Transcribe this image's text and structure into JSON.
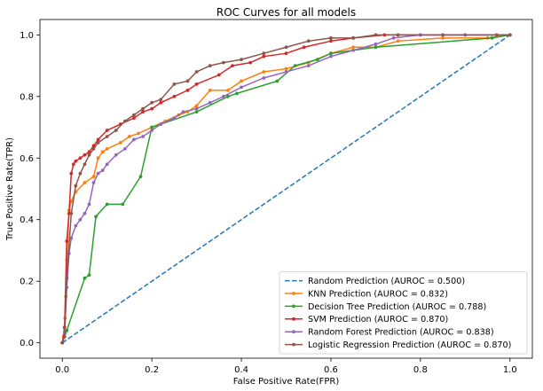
{
  "chart_data": {
    "type": "line",
    "title": "ROC Curves for all models",
    "xlabel": "False Positive Rate(FPR)",
    "ylabel": "True Positive Rate(TPR)",
    "xlim": [
      -0.05,
      1.05
    ],
    "ylim": [
      -0.05,
      1.05
    ],
    "xticks": [
      0.0,
      0.2,
      0.4,
      0.6,
      0.8,
      1.0
    ],
    "yticks": [
      0.0,
      0.2,
      0.4,
      0.6,
      0.8,
      1.0
    ],
    "xtick_labels": [
      "0.0",
      "0.2",
      "0.4",
      "0.6",
      "0.8",
      "1.0"
    ],
    "ytick_labels": [
      "0.0",
      "0.2",
      "0.4",
      "0.6",
      "0.8",
      "1.0"
    ],
    "grid": false,
    "legend_position": "bottom-right",
    "series": [
      {
        "name": "Random Prediction (AUROC = 0.500)",
        "color": "#1f77b4",
        "style": "dashed",
        "marker": false,
        "x": [
          0,
          1
        ],
        "y": [
          0,
          1
        ]
      },
      {
        "name": "KNN Prediction (AUROC = 0.832)",
        "color": "#ff7f0e",
        "style": "solid",
        "marker": true,
        "x": [
          0,
          0.003,
          0.006,
          0.008,
          0.01,
          0.015,
          0.02,
          0.03,
          0.05,
          0.07,
          0.08,
          0.09,
          0.1,
          0.13,
          0.15,
          0.17,
          0.2,
          0.23,
          0.26,
          0.28,
          0.3,
          0.33,
          0.37,
          0.4,
          0.45,
          0.5,
          0.55,
          0.6,
          0.65,
          0.7,
          0.75,
          0.85,
          0.95,
          1.0
        ],
        "y": [
          0,
          0.02,
          0.08,
          0.15,
          0.27,
          0.43,
          0.46,
          0.49,
          0.52,
          0.54,
          0.6,
          0.62,
          0.63,
          0.65,
          0.67,
          0.68,
          0.7,
          0.72,
          0.74,
          0.75,
          0.77,
          0.82,
          0.82,
          0.85,
          0.88,
          0.89,
          0.91,
          0.94,
          0.96,
          0.96,
          0.98,
          0.99,
          0.99,
          1.0
        ]
      },
      {
        "name": "Decision Tree Prediction (AUROC = 0.788)",
        "color": "#2ca02c",
        "style": "solid",
        "marker": true,
        "x": [
          0,
          0.01,
          0.05,
          0.06,
          0.075,
          0.1,
          0.135,
          0.175,
          0.2,
          0.3,
          0.37,
          0.39,
          0.48,
          0.52,
          0.57,
          0.6,
          0.7,
          0.96,
          1.0
        ],
        "y": [
          0,
          0.04,
          0.21,
          0.22,
          0.41,
          0.45,
          0.45,
          0.54,
          0.7,
          0.75,
          0.8,
          0.81,
          0.85,
          0.9,
          0.92,
          0.94,
          0.96,
          0.99,
          1.0
        ]
      },
      {
        "name": "SVM Prediction (AUROC = 0.870)",
        "color": "#d62728",
        "style": "solid",
        "marker": true,
        "x": [
          0,
          0.005,
          0.01,
          0.015,
          0.02,
          0.025,
          0.03,
          0.04,
          0.05,
          0.06,
          0.07,
          0.08,
          0.1,
          0.13,
          0.16,
          0.18,
          0.2,
          0.22,
          0.25,
          0.28,
          0.3,
          0.35,
          0.38,
          0.42,
          0.45,
          0.5,
          0.54,
          0.6,
          0.65,
          0.72,
          0.8,
          0.9,
          1.0
        ],
        "y": [
          0,
          0.05,
          0.33,
          0.42,
          0.55,
          0.58,
          0.59,
          0.6,
          0.61,
          0.62,
          0.64,
          0.66,
          0.69,
          0.71,
          0.73,
          0.75,
          0.76,
          0.78,
          0.8,
          0.82,
          0.84,
          0.87,
          0.9,
          0.91,
          0.93,
          0.94,
          0.96,
          0.98,
          0.99,
          1.0,
          1.0,
          1.0,
          1.0
        ]
      },
      {
        "name": "Random Forest Prediction (AUROC = 0.838)",
        "color": "#9467bd",
        "style": "solid",
        "marker": true,
        "x": [
          0,
          0.005,
          0.01,
          0.015,
          0.02,
          0.03,
          0.04,
          0.05,
          0.06,
          0.07,
          0.08,
          0.09,
          0.1,
          0.12,
          0.14,
          0.16,
          0.18,
          0.2,
          0.22,
          0.25,
          0.27,
          0.3,
          0.33,
          0.36,
          0.4,
          0.45,
          0.5,
          0.55,
          0.6,
          0.65,
          0.7,
          0.74,
          0.8,
          0.9,
          1.0
        ],
        "y": [
          0,
          0.03,
          0.18,
          0.29,
          0.34,
          0.38,
          0.4,
          0.42,
          0.45,
          0.52,
          0.55,
          0.56,
          0.58,
          0.61,
          0.63,
          0.66,
          0.67,
          0.69,
          0.71,
          0.73,
          0.75,
          0.76,
          0.78,
          0.8,
          0.83,
          0.86,
          0.88,
          0.9,
          0.93,
          0.95,
          0.97,
          0.99,
          1.0,
          1.0,
          1.0
        ]
      },
      {
        "name": "Logistic Regression Prediction (AUROC = 0.870)",
        "color": "#8c564b",
        "style": "solid",
        "marker": true,
        "x": [
          0,
          0.005,
          0.01,
          0.02,
          0.03,
          0.04,
          0.05,
          0.06,
          0.07,
          0.08,
          0.1,
          0.12,
          0.14,
          0.16,
          0.18,
          0.2,
          0.22,
          0.25,
          0.28,
          0.3,
          0.33,
          0.36,
          0.4,
          0.45,
          0.5,
          0.55,
          0.6,
          0.65,
          0.7,
          0.75,
          0.85,
          0.97,
          1.0
        ],
        "y": [
          0,
          0.02,
          0.21,
          0.42,
          0.51,
          0.55,
          0.58,
          0.61,
          0.63,
          0.65,
          0.67,
          0.69,
          0.72,
          0.74,
          0.76,
          0.78,
          0.79,
          0.84,
          0.85,
          0.88,
          0.9,
          0.91,
          0.92,
          0.94,
          0.96,
          0.98,
          0.99,
          0.99,
          1.0,
          1.0,
          1.0,
          1.0,
          1.0
        ]
      }
    ]
  }
}
